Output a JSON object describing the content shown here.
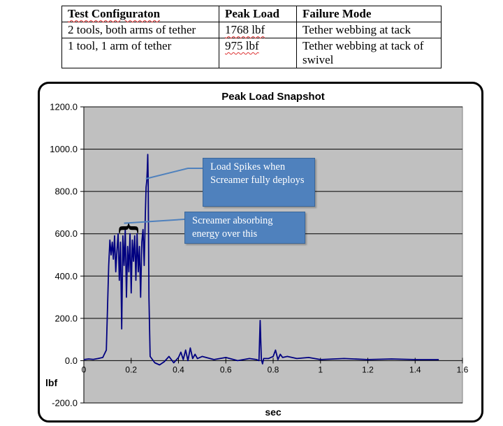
{
  "table": {
    "headers": [
      "Test Configuraton",
      "Peak Load",
      "Failure Mode"
    ],
    "rows": [
      [
        "2 tools, both arms of tether",
        "1768 lbf",
        "Tether webbing at tack"
      ],
      [
        "1 tool, 1 arm of tether",
        "975 lbf",
        "Tether webbing at tack of swivel"
      ]
    ]
  },
  "colors": {
    "plot_background": "#c0c0c0",
    "series_line": "#000080",
    "annotation_box": "#4f81bd",
    "annotation_leader": "#4f81bd"
  },
  "annotations": [
    {
      "text": "Load Spikes when Screamer  fully deploys",
      "points_to": "peak near 0.27 sec"
    },
    {
      "text": "Screamer  absorbing energy over this",
      "points_to": "oscillation region 0.1–0.26 sec"
    }
  ],
  "chart_data": {
    "type": "line",
    "title": "Peak Load Snapshot",
    "xlabel": "sec",
    "ylabel": "lbf",
    "xlim": [
      0,
      1.6
    ],
    "ylim": [
      -200,
      1200
    ],
    "x_ticks": [
      "0",
      "0.2",
      "0.4",
      "0.6",
      "0.8",
      "1",
      "1.2",
      "1.4",
      "1.6"
    ],
    "y_ticks": [
      "1200.0",
      "1000.0",
      "800.0",
      "600.0",
      "400.0",
      "200.0",
      "0.0",
      "-200.0"
    ],
    "grid": "horizontal",
    "legend": "none",
    "series": [
      {
        "x": [
          0,
          0.02,
          0.04,
          0.06,
          0.08,
          0.095,
          0.1,
          0.105,
          0.11,
          0.115,
          0.12,
          0.125,
          0.13,
          0.135,
          0.14,
          0.145,
          0.15,
          0.155,
          0.16,
          0.165,
          0.17,
          0.175,
          0.18,
          0.185,
          0.19,
          0.195,
          0.2,
          0.205,
          0.21,
          0.215,
          0.22,
          0.225,
          0.23,
          0.235,
          0.24,
          0.245,
          0.25,
          0.255,
          0.26,
          0.263,
          0.266,
          0.268,
          0.27,
          0.272,
          0.275,
          0.28,
          0.3,
          0.32,
          0.34,
          0.36,
          0.38,
          0.4,
          0.41,
          0.42,
          0.43,
          0.44,
          0.45,
          0.46,
          0.47,
          0.48,
          0.5,
          0.55,
          0.6,
          0.65,
          0.7,
          0.73,
          0.74,
          0.745,
          0.75,
          0.755,
          0.76,
          0.78,
          0.8,
          0.81,
          0.82,
          0.83,
          0.84,
          0.86,
          0.9,
          0.95,
          1.0,
          1.1,
          1.2,
          1.3,
          1.4,
          1.5
        ],
        "y": [
          5,
          8,
          6,
          10,
          15,
          50,
          250,
          450,
          570,
          500,
          560,
          480,
          590,
          420,
          520,
          600,
          380,
          560,
          150,
          590,
          450,
          620,
          300,
          540,
          420,
          600,
          320,
          570,
          470,
          590,
          380,
          600,
          420,
          540,
          300,
          560,
          620,
          450,
          700,
          820,
          850,
          900,
          975,
          860,
          300,
          20,
          -10,
          -20,
          -5,
          20,
          -10,
          15,
          40,
          5,
          50,
          0,
          60,
          10,
          30,
          10,
          20,
          5,
          15,
          0,
          10,
          5,
          0,
          190,
          5,
          -15,
          10,
          10,
          20,
          50,
          5,
          30,
          15,
          20,
          10,
          15,
          5,
          10,
          5,
          8,
          5,
          5
        ]
      }
    ]
  }
}
